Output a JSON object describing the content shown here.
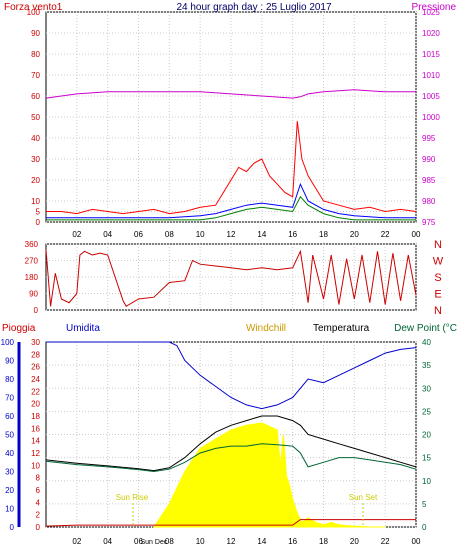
{
  "chart_data": [
    {
      "type": "line",
      "panel": "wind-pressure",
      "title": "24 hour graph day : 25 Luglio 2017",
      "left_label": "Forza vento1",
      "right_label": "Pressione",
      "x_tick_labels": [
        "02",
        "04",
        "06",
        "08",
        "10",
        "12",
        "14",
        "16",
        "18",
        "20",
        "22",
        "00"
      ],
      "y_left_ticks": [
        0,
        5,
        10,
        20,
        30,
        40,
        50,
        60,
        70,
        80,
        90,
        100
      ],
      "y_right_ticks": [
        975,
        980,
        985,
        990,
        995,
        1000,
        1005,
        1010,
        1015,
        1020,
        1025
      ],
      "y_left_range": [
        0,
        100
      ],
      "y_right_range": [
        975,
        1025
      ],
      "grid": true,
      "series": [
        {
          "color": "#ff0000",
          "x": [
            0,
            1,
            2,
            3,
            4,
            5,
            6,
            7,
            8,
            9,
            10,
            11,
            11.5,
            12,
            12.5,
            13,
            13.5,
            14,
            14.5,
            15,
            15.5,
            16,
            16.3,
            16.6,
            17,
            17.5,
            18,
            19,
            20,
            21,
            22,
            23,
            24
          ],
          "y": [
            5,
            5,
            4,
            6,
            5,
            4,
            5,
            6,
            4,
            5,
            7,
            8,
            14,
            20,
            26,
            24,
            28,
            30,
            22,
            18,
            14,
            12,
            48,
            30,
            22,
            16,
            10,
            8,
            6,
            7,
            5,
            6,
            5
          ]
        },
        {
          "color": "#0000ff",
          "x": [
            0,
            2,
            4,
            6,
            8,
            10,
            11,
            12,
            13,
            14,
            15,
            16,
            16.5,
            17,
            18,
            19,
            20,
            22,
            24
          ],
          "y": [
            2,
            2,
            2,
            2,
            2,
            3,
            4,
            6,
            8,
            9,
            8,
            7,
            18,
            10,
            6,
            4,
            3,
            2,
            2
          ]
        },
        {
          "color": "#008000",
          "x": [
            0,
            2,
            4,
            6,
            8,
            10,
            11,
            12,
            13,
            14,
            15,
            16,
            16.5,
            17,
            18,
            19,
            20,
            22,
            24
          ],
          "y": [
            1,
            1,
            1,
            1,
            1,
            1,
            2,
            4,
            6,
            7,
            6,
            5,
            12,
            8,
            4,
            2,
            1,
            1,
            1
          ]
        },
        {
          "color": "#cc00cc",
          "axis": "right",
          "x": [
            0,
            1,
            2,
            4,
            6,
            8,
            10,
            12,
            14,
            16,
            16.5,
            17,
            18,
            20,
            22,
            24
          ],
          "y": [
            1004.5,
            1005,
            1005.5,
            1006,
            1006,
            1006,
            1006,
            1005.5,
            1005,
            1004.5,
            1004.8,
            1005.5,
            1006,
            1006.5,
            1006,
            1006
          ]
        }
      ]
    },
    {
      "type": "line",
      "panel": "wind-direction",
      "y_left_ticks": [
        0,
        90,
        180,
        270,
        360
      ],
      "y_right_labels": [
        "N",
        "W",
        "S",
        "E",
        "N"
      ],
      "y_range": [
        0,
        360
      ],
      "series": [
        {
          "color": "#cc0000",
          "x": [
            0,
            0.3,
            0.6,
            1,
            1.5,
            2,
            2.2,
            2.5,
            3,
            3.5,
            4,
            5,
            5.2,
            6,
            7,
            8,
            9,
            9.5,
            10,
            11,
            12,
            13,
            14,
            15,
            16,
            16.5,
            17,
            17.3,
            18,
            18.5,
            19,
            19.5,
            20,
            20.5,
            21,
            21.5,
            22,
            22.5,
            23,
            23.5,
            24
          ],
          "y": [
            330,
            20,
            200,
            60,
            40,
            90,
            300,
            320,
            300,
            310,
            300,
            50,
            20,
            60,
            70,
            150,
            160,
            270,
            250,
            240,
            230,
            220,
            230,
            220,
            230,
            320,
            40,
            300,
            60,
            300,
            30,
            280,
            60,
            300,
            40,
            320,
            30,
            310,
            50,
            300,
            80
          ]
        }
      ]
    },
    {
      "type": "line",
      "panel": "rain-humidity-temperature",
      "left_label_1": "Pioggia",
      "left_label_2": "Umidita",
      "label_windchill": "Windchill",
      "label_temp": "Temperatura",
      "label_dew": "Dew Point (°C",
      "sunrise_label": "Sun Rise",
      "sunset_label": "Sun Set",
      "x_tick_labels": [
        "02",
        "04",
        "06",
        "08",
        "10",
        "12",
        "14",
        "16",
        "18",
        "20",
        "22",
        "00"
      ],
      "x_extra_label": "Sun Dec",
      "y_rain_ticks": [
        0,
        2,
        4,
        6,
        8,
        10,
        12,
        14,
        16,
        18,
        20,
        22,
        24,
        26,
        28,
        30
      ],
      "y_hum_ticks": [
        0,
        10,
        20,
        30,
        40,
        50,
        60,
        70,
        80,
        90,
        100
      ],
      "y_temp_ticks": [
        0,
        5,
        10,
        15,
        20,
        25,
        30,
        35,
        40
      ],
      "y_temp_range": [
        0,
        40
      ],
      "y_hum_range": [
        0,
        100
      ],
      "series": [
        {
          "name": "Umidita",
          "color": "#0000cc",
          "axis": "hum",
          "x": [
            0,
            2,
            4,
            6,
            8,
            8.5,
            9,
            10,
            11,
            12,
            13,
            14,
            15,
            16,
            16.5,
            17,
            18,
            19,
            20,
            21,
            22,
            23,
            24
          ],
          "y": [
            100,
            100,
            100,
            100,
            100,
            98,
            90,
            82,
            76,
            70,
            66,
            64,
            66,
            70,
            75,
            80,
            78,
            82,
            86,
            90,
            94,
            96,
            97
          ]
        },
        {
          "name": "Temperatura",
          "color": "#000000",
          "axis": "temp",
          "x": [
            0,
            2,
            4,
            6,
            7,
            8,
            9,
            10,
            11,
            12,
            13,
            14,
            15,
            16,
            16.5,
            17,
            18,
            19,
            20,
            21,
            22,
            23,
            24
          ],
          "y": [
            14.5,
            13.8,
            13.2,
            12.6,
            12.2,
            12.8,
            15,
            18,
            20.5,
            22,
            23,
            24,
            24,
            23,
            22,
            20,
            19,
            18,
            17,
            16,
            15,
            14,
            13
          ]
        },
        {
          "name": "Dew Point",
          "color": "#006633",
          "axis": "temp",
          "x": [
            0,
            2,
            4,
            6,
            7,
            8,
            9,
            10,
            11,
            12,
            13,
            14,
            15,
            16,
            16.5,
            17,
            18,
            19,
            20,
            21,
            22,
            23,
            24
          ],
          "y": [
            14.2,
            13.5,
            13,
            12.4,
            12,
            12.5,
            14,
            16,
            17,
            17.5,
            17.5,
            18,
            17.8,
            17.5,
            16,
            13,
            14,
            15,
            15,
            14.5,
            14,
            13.5,
            12.5
          ]
        },
        {
          "name": "Solar",
          "color": "#ffff00",
          "axis": "temp",
          "fill": true,
          "x": [
            7,
            8,
            9,
            10,
            11,
            12,
            13,
            14,
            15,
            15.2,
            15.4,
            15.6,
            15.8,
            16,
            16.3,
            16.6,
            17,
            17.5,
            18,
            18.5,
            19,
            19.5,
            20,
            21,
            22
          ],
          "y": [
            0,
            5,
            12,
            17,
            19,
            21,
            22,
            22.5,
            21,
            13,
            20,
            11,
            9,
            6,
            3,
            1,
            2,
            1,
            0.5,
            1,
            0.5,
            0.3,
            0.2,
            0,
            0
          ]
        },
        {
          "name": "Pioggia",
          "color": "#cc0000",
          "axis": "temp",
          "x": [
            0,
            1,
            2,
            4,
            6,
            8,
            10,
            12,
            14,
            16,
            16.5,
            17,
            18,
            20,
            22,
            24
          ],
          "y": [
            0.2,
            0.3,
            0.4,
            0.4,
            0.4,
            0.4,
            0.4,
            0.4,
            0.4,
            0.4,
            1.6,
            1.6,
            1.6,
            1.6,
            1.6,
            1.6
          ]
        }
      ]
    }
  ]
}
